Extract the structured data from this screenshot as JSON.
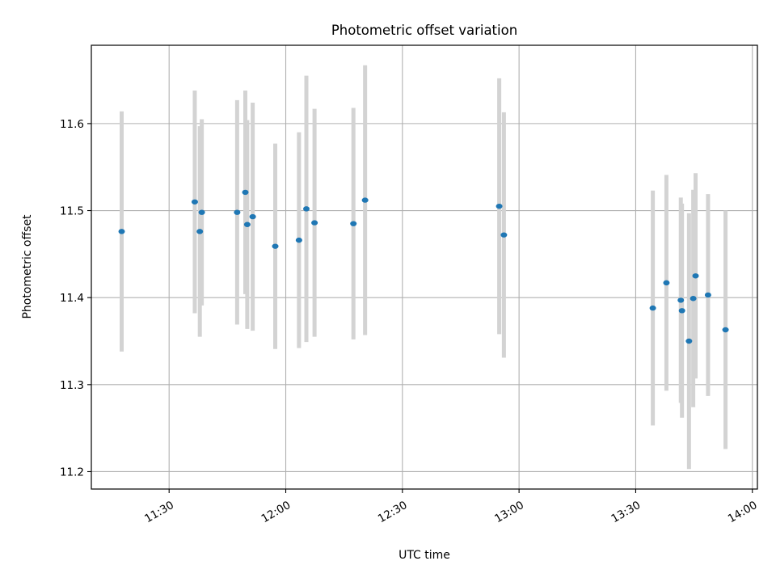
{
  "chart_data": {
    "type": "scatter",
    "title": "Photometric offset variation",
    "xlabel": "UTC time",
    "ylabel": "Photometric offset",
    "x_ticks": [
      "11:30",
      "12:00",
      "12:30",
      "13:00",
      "13:30",
      "14:00"
    ],
    "x_tick_minutes": [
      690,
      720,
      750,
      780,
      810,
      840
    ],
    "xlim_minutes": [
      670,
      841.3
    ],
    "y_ticks": [
      "11.2",
      "11.3",
      "11.4",
      "11.5",
      "11.6"
    ],
    "y_tick_values": [
      11.2,
      11.3,
      11.4,
      11.5,
      11.6
    ],
    "ylim": [
      11.18,
      11.69
    ],
    "grid": true,
    "colors": {
      "point": "#1f77b4",
      "errorbar": "#d3d3d3",
      "grid": "#b0b0b0"
    },
    "series": [
      {
        "points": [
          {
            "t": "11:17.8",
            "x": 677.8,
            "y": 11.476,
            "err": 0.138
          },
          {
            "t": "11:36.6",
            "x": 696.6,
            "y": 11.51,
            "err": 0.128
          },
          {
            "t": "11:37.9",
            "x": 697.9,
            "y": 11.476,
            "err": 0.121
          },
          {
            "t": "11:38.4",
            "x": 698.4,
            "y": 11.498,
            "err": 0.107
          },
          {
            "t": "11:47.5",
            "x": 707.5,
            "y": 11.498,
            "err": 0.129
          },
          {
            "t": "11:49.6",
            "x": 709.6,
            "y": 11.521,
            "err": 0.117
          },
          {
            "t": "11:50.1",
            "x": 710.1,
            "y": 11.484,
            "err": 0.12
          },
          {
            "t": "11:51.5",
            "x": 711.5,
            "y": 11.493,
            "err": 0.131
          },
          {
            "t": "11:57.3",
            "x": 717.3,
            "y": 11.459,
            "err": 0.118
          },
          {
            "t": "12:03.4",
            "x": 723.4,
            "y": 11.466,
            "err": 0.124
          },
          {
            "t": "12:05.3",
            "x": 725.3,
            "y": 11.502,
            "err": 0.153
          },
          {
            "t": "12:07.4",
            "x": 727.4,
            "y": 11.486,
            "err": 0.131
          },
          {
            "t": "12:17.4",
            "x": 737.4,
            "y": 11.485,
            "err": 0.133
          },
          {
            "t": "12:20.4",
            "x": 740.4,
            "y": 11.512,
            "err": 0.155
          },
          {
            "t": "12:54.9",
            "x": 774.9,
            "y": 11.505,
            "err": 0.147
          },
          {
            "t": "12:56.1",
            "x": 776.1,
            "y": 11.472,
            "err": 0.141
          },
          {
            "t": "13:34.4",
            "x": 814.4,
            "y": 11.388,
            "err": 0.135
          },
          {
            "t": "13:37.9",
            "x": 817.9,
            "y": 11.417,
            "err": 0.124
          },
          {
            "t": "13:41.6",
            "x": 821.6,
            "y": 11.397,
            "err": 0.118
          },
          {
            "t": "13:41.9",
            "x": 821.9,
            "y": 11.385,
            "err": 0.123
          },
          {
            "t": "13:43.7",
            "x": 823.7,
            "y": 11.35,
            "err": 0.147
          },
          {
            "t": "13:44.8",
            "x": 824.8,
            "y": 11.399,
            "err": 0.125
          },
          {
            "t": "13:45.4",
            "x": 825.4,
            "y": 11.425,
            "err": 0.118
          },
          {
            "t": "13:48.6",
            "x": 828.6,
            "y": 11.403,
            "err": 0.116
          },
          {
            "t": "13:53.1",
            "x": 833.1,
            "y": 11.363,
            "err": 0.137
          }
        ]
      }
    ]
  }
}
